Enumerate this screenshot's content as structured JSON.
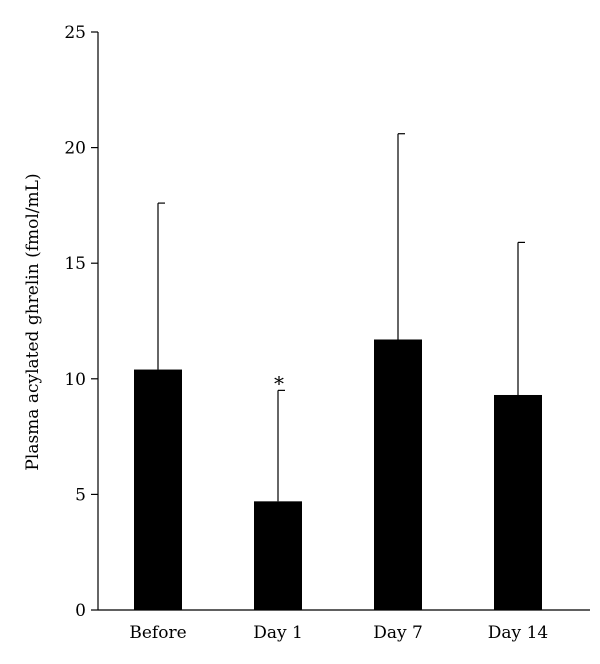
{
  "chart_data": {
    "type": "bar",
    "title": "",
    "xlabel": "",
    "ylabel": "Plasma acylated ghrelin (fmol/mL)",
    "categories": [
      "Before",
      "Day 1",
      "Day 7",
      "Day 14"
    ],
    "values": [
      10.4,
      4.7,
      11.7,
      9.3
    ],
    "error_upper": [
      17.6,
      9.5,
      20.6,
      15.9
    ],
    "ylim": [
      0,
      25
    ],
    "yticks": [
      "0",
      "5",
      "10",
      "15",
      "20",
      "25"
    ],
    "annotations": [
      {
        "category": "Day 1",
        "text": "*"
      }
    ],
    "bar_color": "#000000",
    "grid": false,
    "legend": "none"
  }
}
